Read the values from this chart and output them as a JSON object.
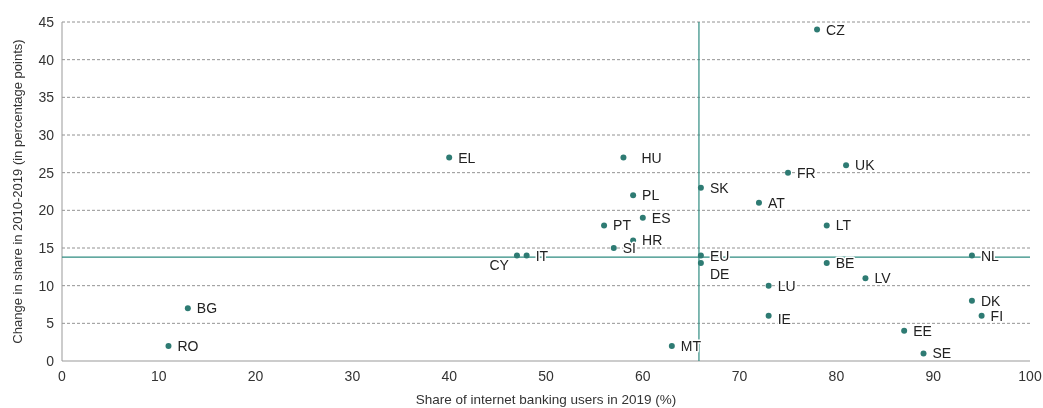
{
  "chart_data": {
    "type": "scatter",
    "xlabel": "Share of internet banking users in 2019 (%)",
    "ylabel": "Change in share in 2010-2019 (in percentage points)",
    "xlim": [
      0,
      100
    ],
    "xticks": [
      0,
      10,
      20,
      30,
      40,
      50,
      60,
      70,
      80,
      90,
      100
    ],
    "ylim": [
      0,
      45
    ],
    "yticks": [
      0,
      5,
      10,
      15,
      20,
      25,
      30,
      35,
      40,
      45
    ],
    "grid": "y",
    "marker": "circle",
    "series": [
      {
        "color": "#2e7b73",
        "x": [
          11,
          13,
          40,
          47,
          48,
          58,
          59,
          56,
          60,
          57,
          59,
          63,
          66,
          66,
          66,
          72,
          75,
          73,
          73,
          78,
          81,
          79,
          79,
          83,
          94,
          94,
          95,
          87,
          89
        ],
        "values": [
          2,
          7,
          27,
          14,
          14,
          27,
          22,
          18,
          19,
          15,
          16,
          2,
          23,
          14,
          13,
          21,
          25,
          10,
          6,
          44,
          26,
          18,
          13,
          11,
          14,
          8,
          6,
          4,
          1
        ]
      }
    ],
    "ref_lines": [
      {
        "axis": "x",
        "value": 65.8,
        "color": "#2e8b80"
      },
      {
        "axis": "y",
        "value": 13.8,
        "color": "#2e8b80"
      }
    ],
    "annotations": [
      {
        "text": "RO",
        "x": 11,
        "y": 2
      },
      {
        "text": "BG",
        "x": 13,
        "y": 7
      },
      {
        "text": "EL",
        "x": 40,
        "y": 27
      },
      {
        "text": "CY",
        "x": 47,
        "y": 14
      },
      {
        "text": "IT",
        "x": 48,
        "y": 14
      },
      {
        "text": "HU",
        "x": 58,
        "y": 27
      },
      {
        "text": "PL",
        "x": 59,
        "y": 22
      },
      {
        "text": "PT",
        "x": 56,
        "y": 18
      },
      {
        "text": "ES",
        "x": 60,
        "y": 19
      },
      {
        "text": "SI",
        "x": 57,
        "y": 15
      },
      {
        "text": "HR",
        "x": 59,
        "y": 16
      },
      {
        "text": "MT",
        "x": 63,
        "y": 2
      },
      {
        "text": "SK",
        "x": 66,
        "y": 23
      },
      {
        "text": "EU",
        "x": 66,
        "y": 14
      },
      {
        "text": "DE",
        "x": 66,
        "y": 13
      },
      {
        "text": "AT",
        "x": 72,
        "y": 21
      },
      {
        "text": "FR",
        "x": 75,
        "y": 25
      },
      {
        "text": "LU",
        "x": 73,
        "y": 10
      },
      {
        "text": "IE",
        "x": 73,
        "y": 6
      },
      {
        "text": "CZ",
        "x": 78,
        "y": 44
      },
      {
        "text": "UK",
        "x": 81,
        "y": 26
      },
      {
        "text": "LT",
        "x": 79,
        "y": 18
      },
      {
        "text": "BE",
        "x": 79,
        "y": 13
      },
      {
        "text": "LV",
        "x": 83,
        "y": 11
      },
      {
        "text": "NL",
        "x": 94,
        "y": 14
      },
      {
        "text": "DK",
        "x": 94,
        "y": 8
      },
      {
        "text": "FI",
        "x": 95,
        "y": 6
      },
      {
        "text": "EE",
        "x": 87,
        "y": 4
      },
      {
        "text": "SE",
        "x": 89,
        "y": 1
      }
    ]
  }
}
